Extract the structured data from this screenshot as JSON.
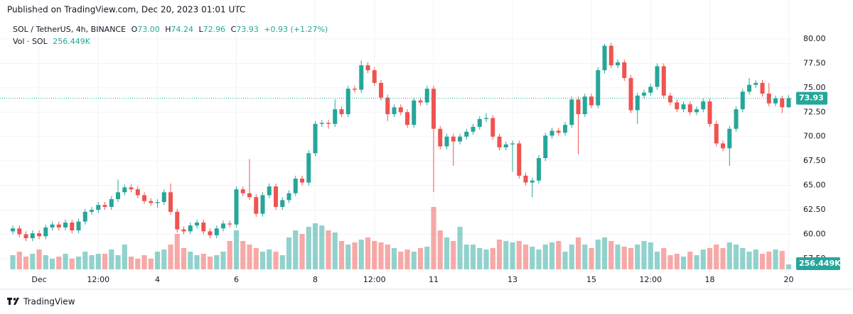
{
  "header": "Published on TradingView.com, Dec 20, 2023 01:01 UTC",
  "footer": "TradingView",
  "legend": {
    "symbol": "SOL / TetherUS, 4h, BINANCE",
    "items": [
      [
        "O",
        "73.00"
      ],
      [
        "H",
        "74.24"
      ],
      [
        "L",
        "72.96"
      ],
      [
        "C",
        "73.93"
      ]
    ],
    "change": "+0.93 (+1.27%)"
  },
  "volume_legend": {
    "name": "Vol · SOL",
    "value": "256.449K"
  },
  "chart_data": {
    "type": "candlestick",
    "up_color": "#26a69a",
    "down_color": "#ef5350",
    "grid": true,
    "ylim": [
      56.41,
      81.81
    ],
    "yticks": [
      {
        "value": 57.5,
        "label": "57.50"
      },
      {
        "value": 60,
        "label": "60.00"
      },
      {
        "value": 62.5,
        "label": "62.50"
      },
      {
        "value": 65,
        "label": "65.00"
      },
      {
        "value": 67.5,
        "label": "67.50"
      },
      {
        "value": 70,
        "label": "70.00"
      },
      {
        "value": 72.5,
        "label": "72.50"
      },
      {
        "value": 75,
        "label": "75.00"
      },
      {
        "value": 77.5,
        "label": "77.50"
      },
      {
        "value": 80,
        "label": "80.00"
      }
    ],
    "last_price": {
      "value": 73.93,
      "label": "73.93"
    },
    "categories": [
      null,
      null,
      null,
      null,
      "Dec",
      null,
      null,
      null,
      null,
      null,
      null,
      null,
      null,
      "12:00",
      null,
      null,
      null,
      null,
      null,
      null,
      null,
      null,
      "4",
      null,
      null,
      null,
      null,
      null,
      null,
      null,
      null,
      null,
      null,
      null,
      "6",
      null,
      null,
      null,
      null,
      null,
      null,
      null,
      null,
      null,
      null,
      null,
      "8",
      null,
      null,
      null,
      null,
      null,
      null,
      null,
      null,
      "12:00",
      null,
      null,
      null,
      null,
      null,
      null,
      null,
      null,
      "11",
      null,
      null,
      null,
      null,
      null,
      null,
      null,
      null,
      null,
      null,
      null,
      "13",
      null,
      null,
      null,
      null,
      null,
      null,
      null,
      null,
      null,
      null,
      null,
      "15",
      null,
      null,
      null,
      null,
      null,
      null,
      null,
      null,
      "12:00",
      null,
      null,
      null,
      null,
      null,
      null,
      null,
      null,
      "18",
      null,
      null,
      null,
      null,
      null,
      null,
      null,
      null,
      null,
      null,
      null,
      "20"
    ],
    "open": [
      60.3,
      60.6,
      60.0,
      59.6,
      60.1,
      59.8,
      60.7,
      61.0,
      60.7,
      61.2,
      60.4,
      61.3,
      62.3,
      62.5,
      63.0,
      62.8,
      63.6,
      64.3,
      64.8,
      64.6,
      64.0,
      63.4,
      63.2,
      63.3,
      64.3,
      62.3,
      60.5,
      60.3,
      60.9,
      61.2,
      60.3,
      59.9,
      60.6,
      61.1,
      61.0,
      64.6,
      64.2,
      63.8,
      62.1,
      64.0,
      64.9,
      62.8,
      63.5,
      64.2,
      65.7,
      65.3,
      68.3,
      71.3,
      71.4,
      71.3,
      72.8,
      72.3,
      74.9,
      74.8,
      77.3,
      76.8,
      75.5,
      74.0,
      72.3,
      73.0,
      72.5,
      71.2,
      73.7,
      73.5,
      74.9,
      70.8,
      69.0,
      70.0,
      69.5,
      70.0,
      70.5,
      71.0,
      71.8,
      71.9,
      70.0,
      68.9,
      69.2,
      69.3,
      66.0,
      65.3,
      65.5,
      67.8,
      70.1,
      70.6,
      70.4,
      71.2,
      73.8,
      72.3,
      74.1,
      73.2,
      76.8,
      79.3,
      77.3,
      77.6,
      76.0,
      72.7,
      74.2,
      74.5,
      75.1,
      77.2,
      74.2,
      73.5,
      72.8,
      73.3,
      72.5,
      72.8,
      73.6,
      71.3,
      69.3,
      68.8,
      70.8,
      72.8,
      74.6,
      75.3,
      75.5,
      74.4,
      73.4,
      73.9,
      73.0
    ],
    "high": [
      60.9,
      60.9,
      60.3,
      60.4,
      60.4,
      61.0,
      61.3,
      61.3,
      61.5,
      61.5,
      61.6,
      62.6,
      62.8,
      63.3,
      63.3,
      63.9,
      65.6,
      65.1,
      65.1,
      64.9,
      64.3,
      63.7,
      63.6,
      64.6,
      65.2,
      62.6,
      60.8,
      61.2,
      61.5,
      61.5,
      60.6,
      60.9,
      61.4,
      61.4,
      64.9,
      64.9,
      67.7,
      64.1,
      64.3,
      65.2,
      65.2,
      63.8,
      64.5,
      66.0,
      66.0,
      68.6,
      71.6,
      71.7,
      71.7,
      73.8,
      73.1,
      75.2,
      75.2,
      77.8,
      77.6,
      77.1,
      75.8,
      74.3,
      73.3,
      73.3,
      72.8,
      74.0,
      74.0,
      75.2,
      75.2,
      71.1,
      70.3,
      70.3,
      70.3,
      70.8,
      71.3,
      72.1,
      72.4,
      72.2,
      70.3,
      69.5,
      69.6,
      69.6,
      66.3,
      65.8,
      68.1,
      70.4,
      70.9,
      70.9,
      71.5,
      74.1,
      74.1,
      74.4,
      74.4,
      77.1,
      79.5,
      79.6,
      77.9,
      77.9,
      76.3,
      74.5,
      74.8,
      75.4,
      77.5,
      77.5,
      74.5,
      73.8,
      73.6,
      73.6,
      73.1,
      73.9,
      73.9,
      71.6,
      69.6,
      71.1,
      73.1,
      74.9,
      76.0,
      75.8,
      75.8,
      75.5,
      74.2,
      74.2,
      74.24
    ],
    "low": [
      60.0,
      59.7,
      59.3,
      59.3,
      59.5,
      59.5,
      60.4,
      60.4,
      60.4,
      60.1,
      60.1,
      61.0,
      62.0,
      62.2,
      62.5,
      62.5,
      63.3,
      64.0,
      64.3,
      63.7,
      63.1,
      62.9,
      62.7,
      63.0,
      62.0,
      60.2,
      60.0,
      60.0,
      60.6,
      60.0,
      59.6,
      59.6,
      60.3,
      60.7,
      60.7,
      63.9,
      63.5,
      61.8,
      61.8,
      63.7,
      62.5,
      62.5,
      63.2,
      63.9,
      65.0,
      65.0,
      68.0,
      71.0,
      70.8,
      71.0,
      72.0,
      72.0,
      74.5,
      74.5,
      76.5,
      75.2,
      73.7,
      71.6,
      72.0,
      72.2,
      70.9,
      70.9,
      73.2,
      73.2,
      64.3,
      68.7,
      68.7,
      67.0,
      69.2,
      69.7,
      70.2,
      70.7,
      71.5,
      69.7,
      68.6,
      68.6,
      66.4,
      65.7,
      65.0,
      63.8,
      65.2,
      67.5,
      69.8,
      70.1,
      70.1,
      70.9,
      68.2,
      72.0,
      72.9,
      72.9,
      76.5,
      77.0,
      77.0,
      75.7,
      72.4,
      71.3,
      73.9,
      74.2,
      74.8,
      73.9,
      73.2,
      72.5,
      72.5,
      72.2,
      72.2,
      72.5,
      71.0,
      69.0,
      68.5,
      67.0,
      70.5,
      72.5,
      74.3,
      75.0,
      74.1,
      73.1,
      73.1,
      72.4,
      72.96
    ],
    "close": [
      60.6,
      60.0,
      59.6,
      60.1,
      59.8,
      60.7,
      61.0,
      60.7,
      61.2,
      60.4,
      61.3,
      62.3,
      62.5,
      63.0,
      62.8,
      63.6,
      64.3,
      64.8,
      64.6,
      64.0,
      63.4,
      63.2,
      63.3,
      64.3,
      62.3,
      60.5,
      60.3,
      60.9,
      61.2,
      60.3,
      59.9,
      60.6,
      61.1,
      61.0,
      64.6,
      64.2,
      63.8,
      62.1,
      64.0,
      64.9,
      62.8,
      63.5,
      64.2,
      65.7,
      65.3,
      68.3,
      71.3,
      71.4,
      71.3,
      72.8,
      72.3,
      74.9,
      74.8,
      77.3,
      76.8,
      75.5,
      74.0,
      72.3,
      73.0,
      72.5,
      71.2,
      73.7,
      73.5,
      74.9,
      70.8,
      69.0,
      70.0,
      69.5,
      70.0,
      70.5,
      71.0,
      71.8,
      71.9,
      70.0,
      68.9,
      69.2,
      69.3,
      66.0,
      65.3,
      65.5,
      67.8,
      70.1,
      70.6,
      70.4,
      71.2,
      73.8,
      72.3,
      74.1,
      73.2,
      76.8,
      79.3,
      77.3,
      77.6,
      76.0,
      72.7,
      74.2,
      74.5,
      75.1,
      77.2,
      74.2,
      73.5,
      72.8,
      73.3,
      72.5,
      72.8,
      73.6,
      71.3,
      69.3,
      68.8,
      70.8,
      72.8,
      74.6,
      75.3,
      75.5,
      74.4,
      73.4,
      73.9,
      73.0,
      73.93
    ],
    "volume": [
      732000,
      915000,
      658800,
      805200,
      1024800,
      732000,
      549000,
      658800,
      805200,
      549000,
      658800,
      915000,
      732000,
      805200,
      805200,
      1024800,
      732000,
      1281000,
      658800,
      549000,
      732000,
      549000,
      915000,
      1024800,
      1281000,
      1830000,
      1098000,
      915000,
      732000,
      805200,
      658800,
      732000,
      915000,
      1464000,
      2013000,
      1464000,
      1281000,
      1098000,
      915000,
      1024800,
      915000,
      732000,
      1647000,
      2013000,
      1830000,
      2196000,
      2379000,
      2269200,
      2013000,
      1903200,
      1464000,
      1281000,
      1390800,
      1537200,
      1647000,
      1464000,
      1390800,
      1281000,
      1098000,
      915000,
      1024800,
      915000,
      1098000,
      1171200,
      3220800,
      2013000,
      1647000,
      1464000,
      2196000,
      1281000,
      1281000,
      1098000,
      1024800,
      1098000,
      1537200,
      1464000,
      1390800,
      1464000,
      1281000,
      1171200,
      1024800,
      1281000,
      1390800,
      1464000,
      915000,
      1281000,
      1647000,
      1281000,
      1098000,
      1537200,
      1647000,
      1464000,
      1281000,
      1171200,
      1098000,
      1281000,
      1464000,
      1390800,
      915000,
      1098000,
      732000,
      805200,
      658800,
      915000,
      732000,
      1024800,
      1098000,
      1281000,
      1098000,
      1390800,
      1281000,
      1098000,
      915000,
      1024800,
      805200,
      915000,
      1024800,
      951600,
      256449
    ]
  }
}
